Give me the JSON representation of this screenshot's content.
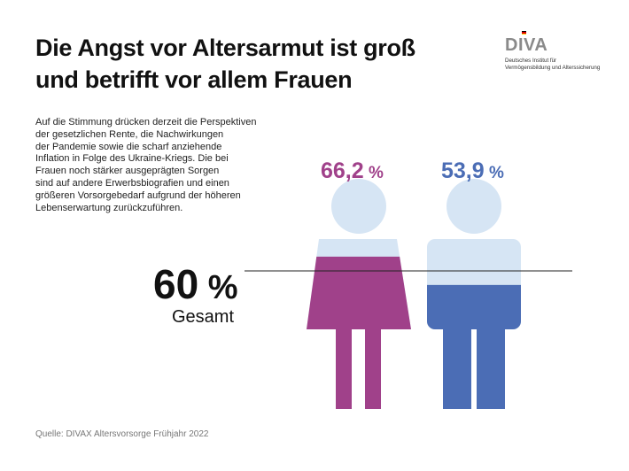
{
  "title": [
    "Die Angst vor Altersarmut ist groß",
    "und betrifft vor allem Frauen"
  ],
  "logo": {
    "word": "DIVA",
    "subtitle": [
      "Deutsches Institut für",
      "Vermögensbildung und Alterssicherung"
    ],
    "flag_colors": [
      "#000000",
      "#dd0000",
      "#ffce00"
    ]
  },
  "body_text": [
    "Auf die Stimmung drücken derzeit die Perspektiven",
    "der gesetzlichen Rente, die Nachwirkungen",
    "der Pandemie sowie die scharf anziehende",
    "Inflation in Folge des Ukraine-Kriegs. Die bei",
    "Frauen noch stärker ausgeprägten Sorgen",
    "sind auf andere Erwerbsbiografien und einen",
    "größeren Vorsorgebedarf aufgrund der höheren",
    "Lebenserwartung zurückzuführen."
  ],
  "source": "Quelle: DIVAX Altersvorsorge Frühjahr 2022",
  "chart_data": {
    "type": "bar",
    "categories": [
      "Frauen",
      "Männer"
    ],
    "values": [
      66.2,
      53.9
    ],
    "value_labels": [
      "66,2",
      "53,9"
    ],
    "unit": "%",
    "colors": [
      "#a0418a",
      "#4b6db5"
    ],
    "background_color": "#d6e5f4",
    "reference": {
      "value": 60,
      "value_label": "60",
      "unit": "%",
      "label": "Gesamt"
    },
    "ylim": [
      0,
      100
    ]
  }
}
